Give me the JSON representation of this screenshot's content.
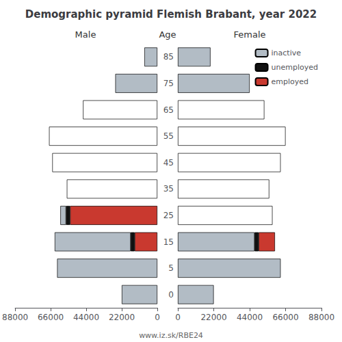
{
  "chart_data": [
    {
      "type": "bar",
      "orientation": "horizontal",
      "stacked": true,
      "title": "Demographic pyramid Flemish Brabant, year 2022",
      "xlabel": "Male",
      "categories": [
        "0",
        "5",
        "15",
        "25",
        "35",
        "45",
        "55",
        "65",
        "75",
        "85"
      ],
      "series": [
        {
          "name": "employed",
          "color": "#c9392f",
          "values": [
            0,
            0,
            14000,
            54000,
            0,
            0,
            0,
            0,
            0,
            0
          ]
        },
        {
          "name": "unemployed",
          "color": "#111111",
          "values": [
            0,
            0,
            2500,
            2500,
            0,
            0,
            0,
            0,
            0,
            0
          ]
        },
        {
          "name": "inactive",
          "color": "#b2bcc5",
          "colors": [
            "#b2bcc5",
            "#b2bcc5",
            "#b2bcc5",
            "#b2bcc5",
            "white",
            "white",
            "white",
            "white",
            "#b2bcc5",
            "#b2bcc5"
          ],
          "values": [
            22000,
            62000,
            47000,
            3500,
            56000,
            65000,
            67000,
            46000,
            26000,
            8000
          ]
        }
      ],
      "xlim": [
        88000,
        0
      ],
      "xticks": [
        0,
        22000,
        44000,
        66000,
        88000
      ],
      "grid": false,
      "tick_labels": "x",
      "annotations": [
        "www.iz.sk/RBE24"
      ]
    },
    {
      "type": "bar",
      "orientation": "horizontal",
      "stacked": true,
      "xlabel": "Female",
      "ylabel": "Age",
      "categories": [
        "0",
        "5",
        "15",
        "25",
        "35",
        "45",
        "55",
        "65",
        "75",
        "85"
      ],
      "series": [
        {
          "name": "inactive",
          "color": "#b2bcc5",
          "colors": [
            "#b2bcc5",
            "#b2bcc5",
            "#b2bcc5",
            "white",
            "white",
            "white",
            "white",
            "white",
            "#b2bcc5",
            "#b2bcc5"
          ],
          "values": [
            22000,
            63000,
            47000,
            58000,
            56000,
            63000,
            66000,
            53000,
            44000,
            20000
          ]
        },
        {
          "name": "unemployed",
          "color": "#111111",
          "values": [
            0,
            0,
            2500,
            0,
            0,
            0,
            0,
            0,
            0,
            0
          ]
        },
        {
          "name": "employed",
          "color": "#c9392f",
          "values": [
            0,
            0,
            10000,
            0,
            0,
            0,
            0,
            0,
            0,
            0
          ]
        }
      ],
      "xlim": [
        0,
        88000
      ],
      "xticks": [
        0,
        22000,
        44000,
        66000,
        88000
      ],
      "grid": false,
      "legend": "upper right"
    }
  ]
}
